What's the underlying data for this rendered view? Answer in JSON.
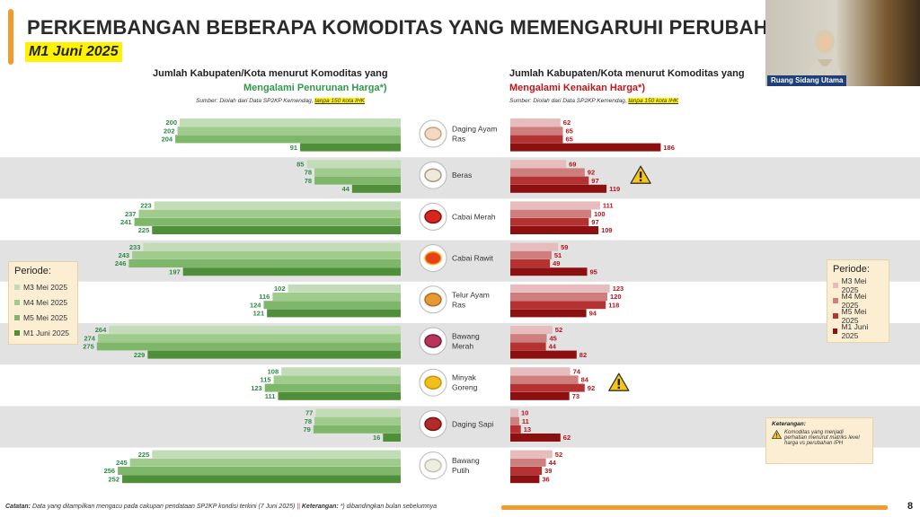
{
  "title": "PERKEMBANGAN BEBERAPA KOMODITAS YANG MEMENGARUHI PERUBAHAN IPH",
  "subtitle": "M1 Juni 2025",
  "left_header": {
    "line1": "Jumlah Kabupaten/Kota menurut Komoditas yang",
    "line2": "Mengalami Penurunan Harga*)",
    "source_prefix": "Sumber: Diolah dari Data SP2KP Kemendag, ",
    "source_highlight": "tanpa 150 kota IHK",
    "color": "#2e9a4a"
  },
  "right_header": {
    "line1": "Jumlah Kabupaten/Kota menurut Komoditas yang",
    "line2": "Mengalami Kenaikan Harga*)",
    "source_prefix": "Sumber: Diolah dari Data SP2KP Kemendag, ",
    "source_highlight": "tanpa 150 kota IHK",
    "color": "#c0161b"
  },
  "legend_left": {
    "title": "Periode:",
    "items": [
      "M3 Mei 2025",
      "M4 Mei 2025",
      "M5 Mei 2025",
      "M1 Juni 2025"
    ],
    "colors": [
      "#c3dcb8",
      "#9fcb8c",
      "#7fb76a",
      "#4f8f3a"
    ]
  },
  "legend_right": {
    "title": "Periode:",
    "items": [
      "M3 Mei 2025",
      "M4 Mei 2025",
      "M5 Mei 2025",
      "M1 Juni 2025"
    ],
    "colors": [
      "#e6bcbc",
      "#cf7e7e",
      "#b53232",
      "#8c1010"
    ]
  },
  "chart_data": [
    {
      "type": "bar",
      "title": "Mengalami Penurunan Harga*)",
      "categories": [
        "Daging Ayam Ras",
        "Beras",
        "Cabai Merah",
        "Cabai Rawit",
        "Telur Ayam Ras",
        "Bawang Merah",
        "Minyak Goreng",
        "Daging Sapi",
        "Bawang Putih"
      ],
      "series": [
        {
          "name": "M3 Mei 2025",
          "values": [
            200,
            85,
            223,
            233,
            102,
            264,
            108,
            77,
            225
          ]
        },
        {
          "name": "M4 Mei 2025",
          "values": [
            202,
            78,
            237,
            243,
            116,
            274,
            115,
            78,
            245
          ]
        },
        {
          "name": "M5 Mei 2025",
          "values": [
            204,
            78,
            241,
            246,
            124,
            275,
            123,
            79,
            256
          ]
        },
        {
          "name": "M1 Juni 2025",
          "values": [
            91,
            44,
            225,
            197,
            121,
            229,
            111,
            16,
            252
          ]
        }
      ],
      "orientation": "horizontal",
      "direction": "right-to-left"
    },
    {
      "type": "bar",
      "title": "Mengalami Kenaikan Harga*)",
      "categories": [
        "Daging Ayam Ras",
        "Beras",
        "Cabai Merah",
        "Cabai Rawit",
        "Telur Ayam Ras",
        "Bawang Merah",
        "Minyak Goreng",
        "Daging Sapi",
        "Bawang Putih"
      ],
      "series": [
        {
          "name": "M3 Mei 2025",
          "values": [
            62,
            69,
            111,
            59,
            123,
            52,
            74,
            10,
            52
          ]
        },
        {
          "name": "M4 Mei 2025",
          "values": [
            65,
            92,
            100,
            51,
            120,
            45,
            84,
            11,
            44
          ]
        },
        {
          "name": "M5 Mei 2025",
          "values": [
            65,
            97,
            97,
            49,
            118,
            44,
            92,
            13,
            39
          ]
        },
        {
          "name": "M1 Juni 2025",
          "values": [
            186,
            119,
            109,
            95,
            94,
            82,
            73,
            62,
            36
          ]
        }
      ],
      "orientation": "horizontal",
      "direction": "left-to-right",
      "warnings": [
        "Beras",
        "Minyak Goreng"
      ]
    }
  ],
  "commodity_labels": [
    [
      "Daging Ayam",
      "Ras"
    ],
    [
      "Beras"
    ],
    [
      "Cabai Merah"
    ],
    [
      "Cabai Rawit"
    ],
    [
      "Telur Ayam",
      "Ras"
    ],
    [
      "Bawang",
      "Merah"
    ],
    [
      "Minyak",
      "Goreng"
    ],
    [
      "Daging Sapi"
    ],
    [
      "Bawang",
      "Putih"
    ]
  ],
  "commodity_icons": [
    "chicken-icon",
    "rice-icon",
    "red-chili-icon",
    "bird-eye-chili-icon",
    "egg-icon",
    "shallot-icon",
    "cooking-oil-icon",
    "beef-icon",
    "garlic-icon"
  ],
  "note": {
    "title": "Keterangan:",
    "text": "Komoditas yang menjadi perhatian menurut matriks level harga vs perubahan IPH"
  },
  "webcam": {
    "caption": "Ruang Sidang Utama"
  },
  "footer": {
    "catatan_label": "Catatan:",
    "catatan_text": " Data yang ditampilkan mengacu pada cakupan pendataan SP2KP kondisi terkini (7 Juni 2025) ",
    "separator": "||",
    "keterangan_label": " Keterangan:",
    "keterangan_text": " *) dibandingkan bulan sebelumnya"
  },
  "page_number": "8"
}
